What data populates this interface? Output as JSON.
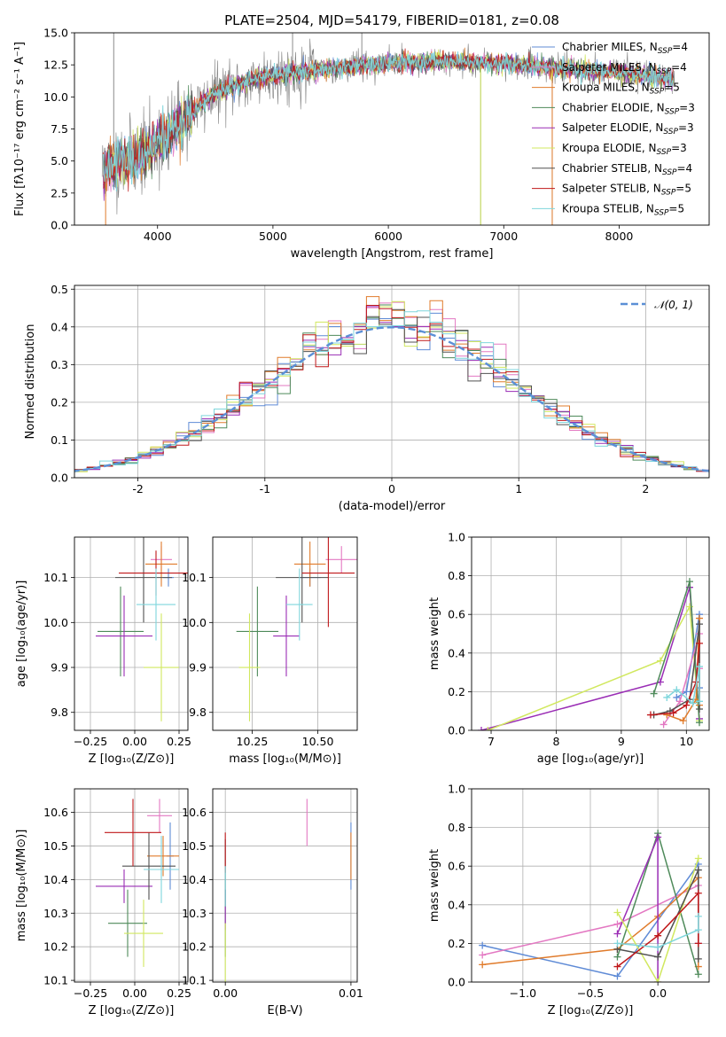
{
  "colors": {
    "Chabrier MILES": "#5f8bd6",
    "Salpeter MILES": "#e378c2",
    "Kroupa MILES": "#e07b2b",
    "Chabrier ELODIE": "#4e8a5a",
    "Salpeter ELODIE": "#9a2db5",
    "Kroupa ELODIE": "#d1e85f",
    "Chabrier STELIB": "#505050",
    "Salpeter STELIB": "#c0181a",
    "Kroupa STELIB": "#7fd6dc",
    "observed": "#7f7f7f",
    "gaussian": "#5b8fd6"
  },
  "chart_data": [
    {
      "id": "spectrum",
      "type": "line",
      "title": "PLATE=2504, MJD=54179, FIBERID=0181, z=0.08",
      "xlabel": "wavelength [Angstrom, rest frame]",
      "ylabel": "Flux [fλ10⁻¹⁷ erg cm⁻² s⁻¹ A⁻¹]",
      "xlim": [
        3280,
        8780
      ],
      "ylim": [
        0,
        15
      ],
      "xticks": [
        4000,
        5000,
        6000,
        7000,
        8000
      ],
      "yticks": [
        0.0,
        2.5,
        5.0,
        7.5,
        10.0,
        12.5,
        15.0
      ],
      "grid": false,
      "legend_position": "right",
      "legend": [
        "Chabrier MILES, N_SSP=4",
        "Salpeter MILES, N_SSP=4",
        "Kroupa MILES, N_SSP=5",
        "Chabrier ELODIE, N_SSP=3",
        "Salpeter ELODIE, N_SSP=3",
        "Kroupa ELODIE, N_SSP=3",
        "Chabrier STELIB, N_SSP=4",
        "Salpeter STELIB, N_SSP=5",
        "Kroupa STELIB, N_SSP=5"
      ],
      "continuum_x": [
        3520,
        3700,
        3900,
        4100,
        4300,
        4500,
        4700,
        4900,
        5100,
        5300,
        5600,
        6000,
        6500,
        7000,
        7500,
        8000,
        8500
      ],
      "continuum_y": [
        4.2,
        5.0,
        5.6,
        7.2,
        8.8,
        10.3,
        11.0,
        11.5,
        11.8,
        12.0,
        12.3,
        12.6,
        12.8,
        12.6,
        12.2,
        11.9,
        11.4
      ],
      "spikes": [
        {
          "x": 3620,
          "y": 15.0
        },
        {
          "x": 5170,
          "y": 15.0
        },
        {
          "x": 5770,
          "y": 15.0
        },
        {
          "x": 6800,
          "y": 0.0
        },
        {
          "x": 7420,
          "y": 0.0
        }
      ]
    },
    {
      "id": "residuals",
      "type": "histogram",
      "xlabel": "(data-model)/error",
      "ylabel": "Normed distribution",
      "xlim": [
        -2.5,
        2.5
      ],
      "ylim": [
        0,
        0.51
      ],
      "xticks": [
        -2,
        -1,
        0,
        1,
        2
      ],
      "yticks": [
        0.0,
        0.1,
        0.2,
        0.3,
        0.4,
        0.5
      ],
      "grid": true,
      "legend": "𝒩(0, 1)",
      "legend_position": "top-right",
      "bin_width": 0.1,
      "reference_curve": "normal(0,1)"
    },
    {
      "id": "age-vs-Z",
      "type": "errorbar",
      "xlabel": "Z [log₁₀(Z/Z⊙)]",
      "ylabel": "age  [log₁₀(age/yr)]",
      "xlim": [
        -0.34,
        0.3
      ],
      "ylim": [
        9.76,
        10.19
      ],
      "xticks": [
        -0.25,
        0.0,
        0.25
      ],
      "xticklabels": [
        "−0.25",
        "0.00",
        "0.25"
      ],
      "yticks": [
        9.8,
        9.9,
        10.0,
        10.1
      ],
      "grid": true,
      "points": [
        {
          "model": "Chabrier MILES",
          "x": 0.19,
          "xerr": 0.03,
          "y": 10.1,
          "yerr": 0.02
        },
        {
          "model": "Salpeter MILES",
          "x": 0.15,
          "xerr": 0.06,
          "y": 10.14,
          "yerr": 0.03
        },
        {
          "model": "Kroupa MILES",
          "x": 0.15,
          "xerr": 0.09,
          "y": 10.13,
          "yerr": 0.05
        },
        {
          "model": "Chabrier ELODIE",
          "x": -0.08,
          "xerr": 0.13,
          "y": 9.98,
          "yerr": 0.1
        },
        {
          "model": "Salpeter ELODIE",
          "x": -0.06,
          "xerr": 0.16,
          "y": 9.97,
          "yerr": 0.09
        },
        {
          "model": "Kroupa ELODIE",
          "x": 0.15,
          "xerr": 0.1,
          "y": 9.9,
          "yerr": 0.12
        },
        {
          "model": "Chabrier STELIB",
          "x": 0.05,
          "xerr": 0.16,
          "y": 10.1,
          "yerr": 0.1
        },
        {
          "model": "Salpeter STELIB",
          "x": 0.12,
          "xerr": 0.21,
          "y": 10.11,
          "yerr": 0.05
        },
        {
          "model": "Kroupa STELIB",
          "x": 0.12,
          "xerr": 0.11,
          "y": 10.04,
          "yerr": 0.08
        }
      ]
    },
    {
      "id": "age-vs-mass",
      "type": "errorbar",
      "xlabel": "mass [log₁₀(M/M⊙)]",
      "ylabel": "",
      "xlim": [
        10.1,
        10.65
      ],
      "ylim": [
        9.76,
        10.19
      ],
      "xticks": [
        10.25,
        10.5
      ],
      "xticklabels": [
        "10.25",
        "10.50"
      ],
      "yticks": [
        9.8,
        9.9,
        10.0,
        10.1
      ],
      "grid": true,
      "points": [
        {
          "model": "Chabrier MILES",
          "x": 10.47,
          "xerr": 0.04,
          "y": 10.1,
          "yerr": 0.02
        },
        {
          "model": "Salpeter MILES",
          "x": 10.59,
          "xerr": 0.06,
          "y": 10.14,
          "yerr": 0.03
        },
        {
          "model": "Kroupa MILES",
          "x": 10.47,
          "xerr": 0.06,
          "y": 10.13,
          "yerr": 0.05
        },
        {
          "model": "Chabrier ELODIE",
          "x": 10.27,
          "xerr": 0.08,
          "y": 9.98,
          "yerr": 0.1
        },
        {
          "model": "Salpeter ELODIE",
          "x": 10.38,
          "xerr": 0.05,
          "y": 9.97,
          "yerr": 0.09
        },
        {
          "model": "Kroupa ELODIE",
          "x": 10.24,
          "xerr": 0.04,
          "y": 9.9,
          "yerr": 0.12
        },
        {
          "model": "Chabrier STELIB",
          "x": 10.44,
          "xerr": 0.1,
          "y": 10.1,
          "yerr": 0.1
        },
        {
          "model": "Salpeter STELIB",
          "x": 10.54,
          "xerr": 0.1,
          "y": 10.11,
          "yerr": 0.12
        },
        {
          "model": "Kroupa STELIB",
          "x": 10.43,
          "xerr": 0.05,
          "y": 10.04,
          "yerr": 0.08
        }
      ]
    },
    {
      "id": "mass-weight-vs-age",
      "type": "line",
      "xlabel": "age  [log₁₀(age/yr)]",
      "ylabel": "mass weight",
      "xlim": [
        6.7,
        10.35
      ],
      "ylim": [
        0,
        1
      ],
      "xticks": [
        7,
        8,
        9,
        10
      ],
      "yticks": [
        0.0,
        0.2,
        0.4,
        0.6,
        0.8,
        1.0
      ],
      "grid": true,
      "series": [
        {
          "model": "Salpeter ELODIE",
          "x": [
            6.85,
            9.6,
            10.05,
            10.2
          ],
          "y": [
            0.0,
            0.25,
            0.74,
            0.06
          ]
        },
        {
          "model": "Kroupa ELODIE",
          "x": [
            6.95,
            9.6,
            10.05,
            10.2
          ],
          "y": [
            0.0,
            0.36,
            0.64,
            0.05
          ]
        },
        {
          "model": "Chabrier ELODIE",
          "x": [
            9.5,
            10.05,
            10.2
          ],
          "y": [
            0.19,
            0.77,
            0.04
          ]
        },
        {
          "model": "Chabrier MILES",
          "x": [
            9.85,
            10.0,
            10.2,
            10.2
          ],
          "y": [
            0.17,
            0.2,
            0.6,
            0.22
          ]
        },
        {
          "model": "Salpeter MILES",
          "x": [
            9.65,
            9.9,
            10.2,
            10.2
          ],
          "y": [
            0.03,
            0.15,
            0.5,
            0.32
          ]
        },
        {
          "model": "Kroupa MILES",
          "x": [
            9.7,
            9.95,
            10.15,
            10.2,
            10.2
          ],
          "y": [
            0.08,
            0.05,
            0.16,
            0.58,
            0.13
          ]
        },
        {
          "model": "Chabrier STELIB",
          "x": [
            9.5,
            9.75,
            10.05,
            10.2,
            10.2
          ],
          "y": [
            0.08,
            0.1,
            0.16,
            0.55,
            0.11
          ]
        },
        {
          "model": "Salpeter STELIB",
          "x": [
            9.45,
            9.8,
            10.0,
            10.15,
            10.2
          ],
          "y": [
            0.08,
            0.09,
            0.13,
            0.25,
            0.45
          ]
        },
        {
          "model": "Kroupa STELIB",
          "x": [
            9.7,
            9.85,
            10.1,
            10.2,
            10.2
          ],
          "y": [
            0.17,
            0.21,
            0.14,
            0.33,
            0.15
          ]
        }
      ]
    },
    {
      "id": "mass-vs-Z",
      "type": "errorbar",
      "xlabel": "Z [log₁₀(Z/Z⊙)]",
      "ylabel": "mass [log₁₀(M/M⊙)]",
      "xlim": [
        -0.34,
        0.3
      ],
      "ylim": [
        10.095,
        10.67
      ],
      "xticks": [
        -0.25,
        0.0,
        0.25
      ],
      "xticklabels": [
        "−0.25",
        "0.00",
        "0.25"
      ],
      "yticks": [
        10.1,
        10.2,
        10.3,
        10.4,
        10.5,
        10.6
      ],
      "grid": true,
      "points": [
        {
          "model": "Chabrier MILES",
          "x": 0.2,
          "xerr": 0.02,
          "y": 10.47,
          "yerr": 0.1
        },
        {
          "model": "Salpeter MILES",
          "x": 0.14,
          "xerr": 0.07,
          "y": 10.59,
          "yerr": 0.05
        },
        {
          "model": "Kroupa MILES",
          "x": 0.16,
          "xerr": 0.09,
          "y": 10.47,
          "yerr": 0.06
        },
        {
          "model": "Chabrier ELODIE",
          "x": -0.04,
          "xerr": 0.11,
          "y": 10.27,
          "yerr": 0.1
        },
        {
          "model": "Salpeter ELODIE",
          "x": -0.06,
          "xerr": 0.16,
          "y": 10.38,
          "yerr": 0.05
        },
        {
          "model": "Kroupa ELODIE",
          "x": 0.05,
          "xerr": 0.11,
          "y": 10.24,
          "yerr": 0.1
        },
        {
          "model": "Chabrier STELIB",
          "x": 0.08,
          "xerr": 0.15,
          "y": 10.44,
          "yerr": 0.1
        },
        {
          "model": "Salpeter STELIB",
          "x": -0.01,
          "xerr": 0.16,
          "y": 10.54,
          "yerr": 0.1
        },
        {
          "model": "Kroupa STELIB",
          "x": 0.15,
          "xerr": 0.1,
          "y": 10.43,
          "yerr": 0.1
        }
      ]
    },
    {
      "id": "mass-vs-EBV",
      "type": "errorbar",
      "xlabel": "E(B-V)",
      "ylabel": "",
      "xlim": [
        -0.001,
        0.0105
      ],
      "ylim": [
        10.095,
        10.67
      ],
      "xticks": [
        0.0,
        0.01
      ],
      "xticklabels": [
        "0.00",
        "0.01"
      ],
      "yticks": [
        10.1,
        10.2,
        10.3,
        10.4,
        10.5,
        10.6
      ],
      "grid": true,
      "points": [
        {
          "model": "Chabrier MILES",
          "x": 0.01,
          "xerr": 0,
          "y": 10.47,
          "yerr": 0.1
        },
        {
          "model": "Salpeter MILES",
          "x": 0.0065,
          "xerr": 0,
          "y": 10.57,
          "yerr": 0.07
        },
        {
          "model": "Kroupa MILES",
          "x": 0.01,
          "xerr": 0,
          "y": 10.47,
          "yerr": 0.07
        },
        {
          "model": "Chabrier ELODIE",
          "x": 0.0,
          "xerr": 0,
          "y": 10.27,
          "yerr": 0.1
        },
        {
          "model": "Salpeter ELODIE",
          "x": 0.0,
          "xerr": 0,
          "y": 10.31,
          "yerr": 0.06
        },
        {
          "model": "Kroupa ELODIE",
          "x": 0.0,
          "xerr": 0,
          "y": 10.17,
          "yerr": 0.1
        },
        {
          "model": "Chabrier STELIB",
          "x": 0.0,
          "xerr": 0,
          "y": 10.42,
          "yerr": 0.1
        },
        {
          "model": "Salpeter STELIB",
          "x": 0.0,
          "xerr": 0,
          "y": 10.48,
          "yerr": 0.06
        },
        {
          "model": "Kroupa STELIB",
          "x": 0.0,
          "xerr": 0,
          "y": 10.38,
          "yerr": 0.06
        }
      ]
    },
    {
      "id": "mass-weight-vs-Z",
      "type": "line",
      "xlabel": "Z [log₁₀(Z/Z⊙)]",
      "ylabel": "mass weight",
      "xlim": [
        -1.38,
        0.38
      ],
      "ylim": [
        0,
        1
      ],
      "xticks": [
        -1.0,
        -0.5,
        0.0
      ],
      "xticklabels": [
        "−1.0",
        "−0.5",
        "0.0"
      ],
      "yticks": [
        0.0,
        0.2,
        0.4,
        0.6,
        0.8,
        1.0
      ],
      "grid": true,
      "series": [
        {
          "model": "Chabrier MILES",
          "x": [
            -1.3,
            -0.3,
            0.3,
            0.3
          ],
          "y": [
            0.19,
            0.03,
            0.61,
            0.2
          ]
        },
        {
          "model": "Salpeter MILES",
          "x": [
            -1.3,
            -0.3,
            0.3,
            0.3
          ],
          "y": [
            0.14,
            0.3,
            0.5,
            0.2
          ]
        },
        {
          "model": "Kroupa MILES",
          "x": [
            -1.3,
            -0.3,
            0.0,
            0.3,
            0.3
          ],
          "y": [
            0.09,
            0.17,
            0.34,
            0.54,
            0.08
          ]
        },
        {
          "model": "Chabrier ELODIE",
          "x": [
            -0.3,
            0.0,
            0.3
          ],
          "y": [
            0.13,
            0.77,
            0.04
          ]
        },
        {
          "model": "Salpeter ELODIE",
          "x": [
            -0.3,
            0.0,
            0.0
          ],
          "y": [
            0.25,
            0.75,
            0.0
          ]
        },
        {
          "model": "Kroupa ELODIE",
          "x": [
            -0.3,
            0.0,
            0.3
          ],
          "y": [
            0.36,
            0.0,
            0.64
          ]
        },
        {
          "model": "Chabrier STELIB",
          "x": [
            -0.3,
            0.0,
            0.3,
            0.3
          ],
          "y": [
            0.17,
            0.13,
            0.58,
            0.12
          ]
        },
        {
          "model": "Salpeter STELIB",
          "x": [
            -0.3,
            0.0,
            0.3,
            0.3
          ],
          "y": [
            0.08,
            0.24,
            0.46,
            0.2
          ]
        },
        {
          "model": "Kroupa STELIB",
          "x": [
            -0.3,
            0.0,
            0.3,
            0.3
          ],
          "y": [
            0.2,
            0.18,
            0.27,
            0.34
          ]
        }
      ]
    }
  ]
}
